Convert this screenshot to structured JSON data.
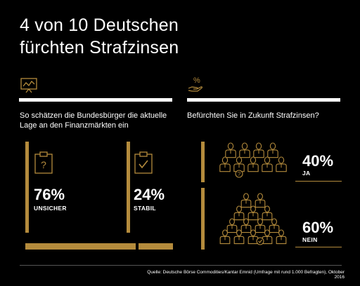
{
  "title": {
    "line1": "4 von 10 Deutschen",
    "line2": "fürchten Strafzinsen"
  },
  "left": {
    "question": "So schätzen die Bundesbürger die aktuelle Lage an den Finanzmärkten ein",
    "icon": "chart-board-icon",
    "items": [
      {
        "value": "76%",
        "label": "UNSICHER",
        "icon": "clipboard-question-icon",
        "share": 0.76
      },
      {
        "value": "24%",
        "label": "STABIL",
        "icon": "clipboard-check-icon",
        "share": 0.24
      }
    ]
  },
  "right": {
    "question": "Befürchten Sie in Zukunft Strafzinsen?",
    "icon": "hand-percent-icon",
    "items": [
      {
        "value": "40%",
        "label": "JA",
        "icon": "people-group-question-icon",
        "share": 0.4
      },
      {
        "value": "60%",
        "label": "NEIN",
        "icon": "people-group-check-icon",
        "share": 0.6
      }
    ]
  },
  "source": "Quelle: Deutsche Börse Commodities/Kantar Emnid (Umfrage mit rund 1.000 Befragten), Oktober 2016",
  "colors": {
    "accent": "#b48b3c",
    "background": "#000000",
    "text": "#ffffff"
  }
}
